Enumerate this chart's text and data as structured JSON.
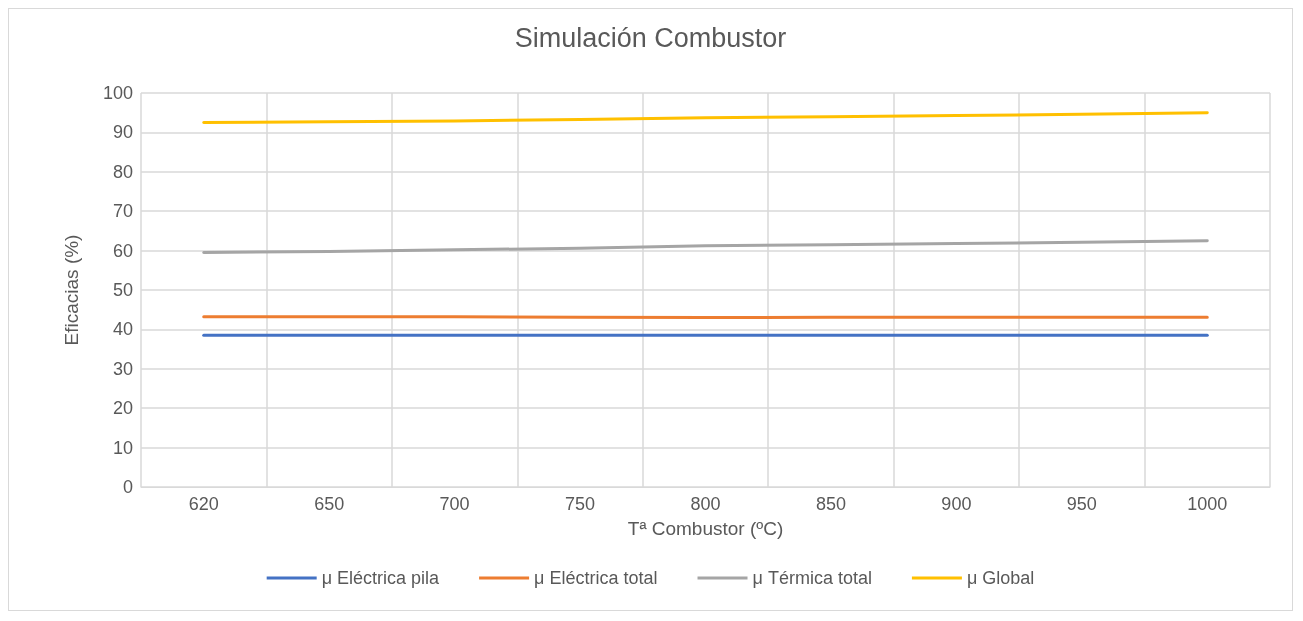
{
  "chart_data": {
    "type": "line",
    "title": "Simulación Combustor",
    "xlabel": "Tª Combustor (ºC)",
    "ylabel": "Eficacias (%)",
    "categories": [
      "620",
      "650",
      "700",
      "750",
      "800",
      "850",
      "900",
      "950",
      "1000"
    ],
    "series": [
      {
        "name": "μ Eléctrica pila",
        "color": "#4472c4",
        "values": [
          38.5,
          38.5,
          38.5,
          38.5,
          38.5,
          38.5,
          38.5,
          38.5,
          38.5
        ]
      },
      {
        "name": "μ Eléctrica total",
        "color": "#ed7d31",
        "values": [
          43.2,
          43.2,
          43.2,
          43.1,
          43.0,
          43.1,
          43.1,
          43.1,
          43.1
        ]
      },
      {
        "name": "μ Térmica total",
        "color": "#a5a5a5",
        "values": [
          59.5,
          59.8,
          60.2,
          60.6,
          61.2,
          61.5,
          61.8,
          62.1,
          62.5
        ]
      },
      {
        "name": "μ Global",
        "color": "#ffc000",
        "values": [
          92.5,
          92.7,
          92.9,
          93.3,
          93.7,
          94.0,
          94.3,
          94.6,
          95.0
        ]
      }
    ],
    "ylim": [
      0,
      100
    ],
    "yticks": [
      0,
      10,
      20,
      30,
      40,
      50,
      60,
      70,
      80,
      90,
      100
    ],
    "grid": true,
    "legend": "bottom",
    "marker": "none",
    "line_style": "solid"
  }
}
